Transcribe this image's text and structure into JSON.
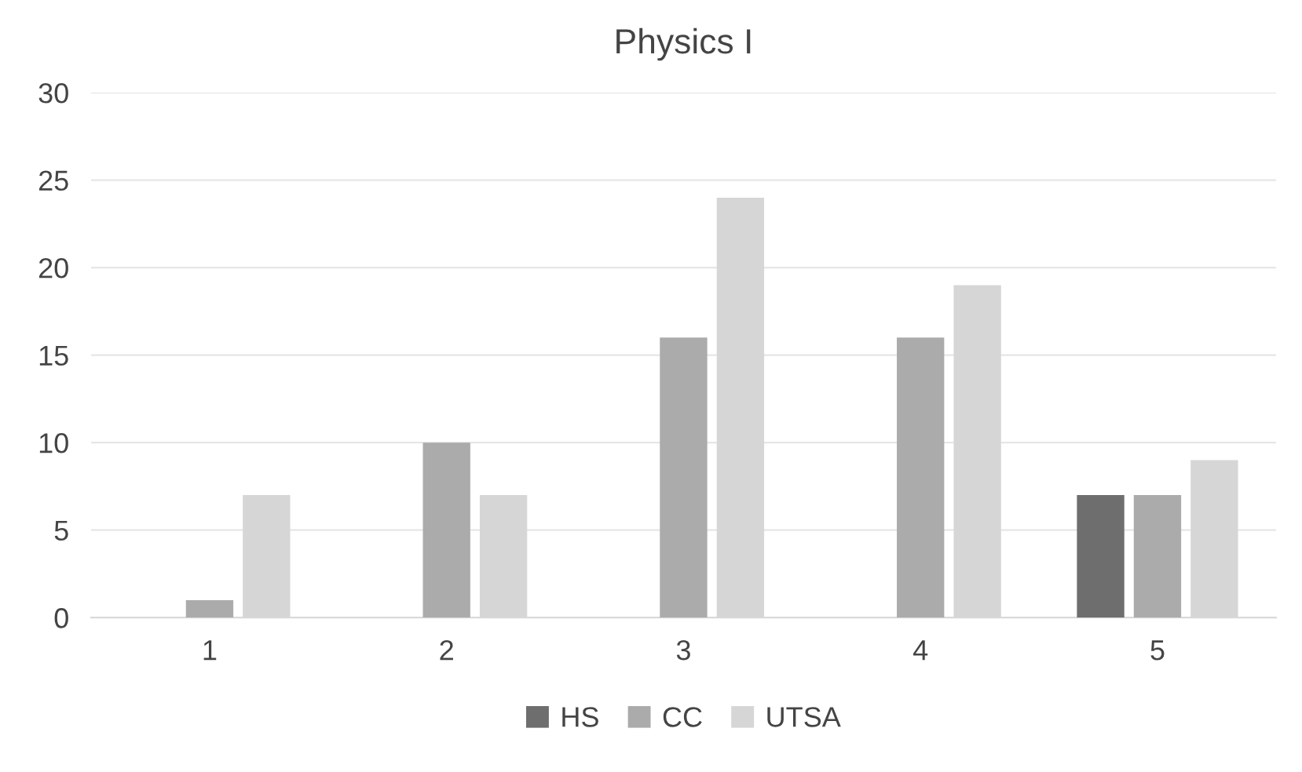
{
  "chart_data": {
    "type": "bar",
    "title": "Physics I",
    "categories": [
      "1",
      "2",
      "3",
      "4",
      "5"
    ],
    "series": [
      {
        "name": "HS",
        "color": "#6e6e6e",
        "values": [
          null,
          null,
          null,
          null,
          7
        ]
      },
      {
        "name": "CC",
        "color": "#ababab",
        "values": [
          1,
          10,
          16,
          16,
          7
        ]
      },
      {
        "name": "UTSA",
        "color": "#d6d6d6",
        "values": [
          7,
          7,
          24,
          19,
          9
        ]
      }
    ],
    "ylim": [
      0,
      30
    ],
    "yticks": [
      0,
      5,
      10,
      15,
      20,
      25,
      30
    ],
    "grid": "y",
    "legend": "bottom"
  }
}
